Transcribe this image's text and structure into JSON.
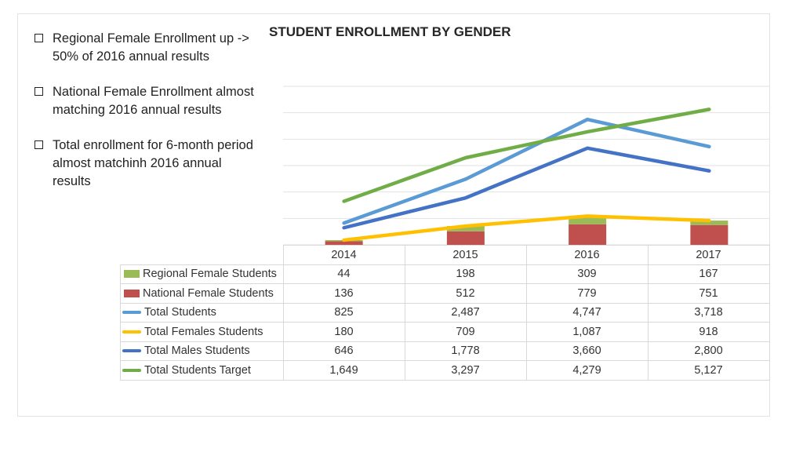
{
  "bullets": [
    "Regional Female Enrollment up -> 50% of 2016 annual results",
    "National Female Enrollment almost matching 2016 annual results",
    "Total enrollment for 6-month period almost matchinh 2016 annual results"
  ],
  "chart_data": {
    "type": "bar",
    "title": "STUDENT ENROLLMENT BY GENDER",
    "categories": [
      "2014",
      "2015",
      "2016",
      "2017"
    ],
    "ylim": [
      0,
      6000
    ],
    "grid": true,
    "stacked_bars": true,
    "series": [
      {
        "name": "Regional Female Students",
        "kind": "bar",
        "color": "#9bbb59",
        "values": [
          44,
          198,
          309,
          167
        ],
        "labels": [
          "44",
          "198",
          "309",
          "167"
        ]
      },
      {
        "name": "National Female Students",
        "kind": "bar",
        "color": "#c0504d",
        "values": [
          136,
          512,
          779,
          751
        ],
        "labels": [
          "136",
          "512",
          "779",
          "751"
        ]
      },
      {
        "name": "Total Students",
        "kind": "line",
        "color": "#5b9bd5",
        "values": [
          825,
          2487,
          4747,
          3718
        ],
        "labels": [
          "825",
          "2,487",
          "4,747",
          "3,718"
        ]
      },
      {
        "name": "Total Females Students",
        "kind": "line",
        "color": "#ffc000",
        "values": [
          180,
          709,
          1087,
          918
        ],
        "labels": [
          "180",
          "709",
          "1,087",
          "918"
        ]
      },
      {
        "name": "Total Males Students",
        "kind": "line",
        "color": "#4472c4",
        "values": [
          646,
          1778,
          3660,
          2800
        ],
        "labels": [
          "646",
          "1,778",
          "3,660",
          "2,800"
        ]
      },
      {
        "name": "Total Students Target",
        "kind": "line",
        "color": "#70ad47",
        "values": [
          1649,
          3297,
          4279,
          5127
        ],
        "labels": [
          "1,649",
          "3,297",
          "4,279",
          "5,127"
        ]
      }
    ]
  }
}
